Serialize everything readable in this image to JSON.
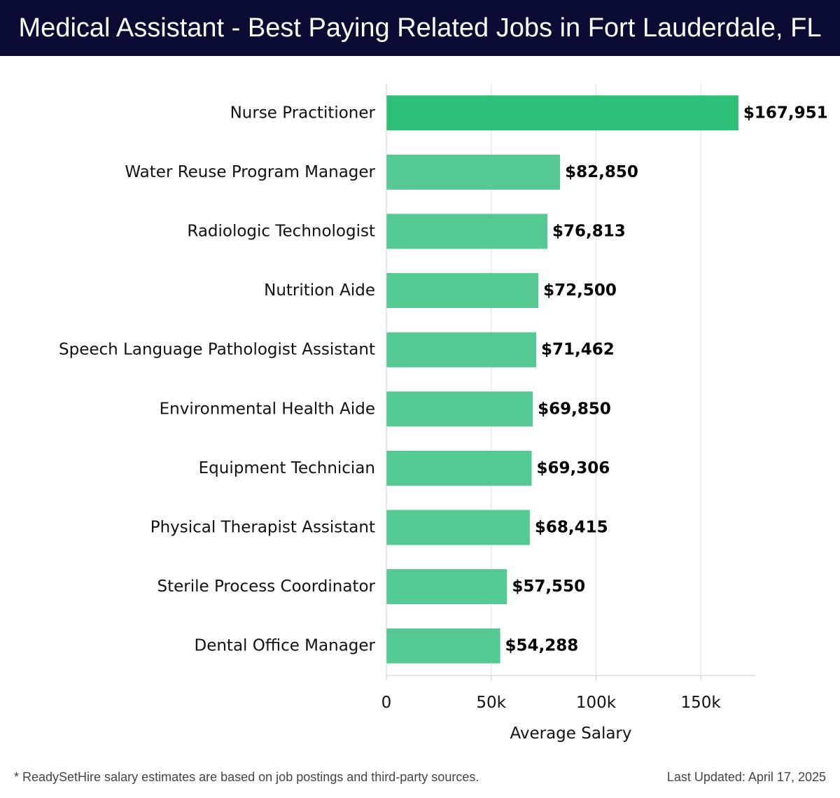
{
  "header": {
    "title": "Medical Assistant - Best Paying Related Jobs in Fort Lauderdale, FL"
  },
  "chart_data": {
    "type": "bar",
    "orientation": "horizontal",
    "categories": [
      "Nurse Practitioner",
      "Water Reuse Program Manager",
      "Radiologic Technologist",
      "Nutrition Aide",
      "Speech Language Pathologist Assistant",
      "Environmental Health Aide",
      "Equipment Technician",
      "Physical Therapist Assistant",
      "Sterile Process Coordinator",
      "Dental Office Manager"
    ],
    "values": [
      167951,
      82850,
      76813,
      72500,
      71462,
      69850,
      69306,
      68415,
      57550,
      54288
    ],
    "data_labels": [
      "$167,951",
      "$82,850",
      "$76,813",
      "$72,500",
      "$71,462",
      "$69,850",
      "$69,306",
      "$68,415",
      "$57,550",
      "$54,288"
    ],
    "xlabel": "Average Salary",
    "ylabel": "",
    "xlim": [
      0,
      176000
    ],
    "x_ticks": [
      0,
      50000,
      100000,
      150000
    ],
    "x_tick_labels": [
      "0",
      "50k",
      "100k",
      "150k"
    ],
    "grid": true,
    "colors": {
      "top_bar": "#2dbf78",
      "bars": "#55c992"
    }
  },
  "footer": {
    "note": "* ReadySetHire salary estimates are based on job postings and third-party sources.",
    "updated": "Last Updated: April 17, 2025"
  }
}
